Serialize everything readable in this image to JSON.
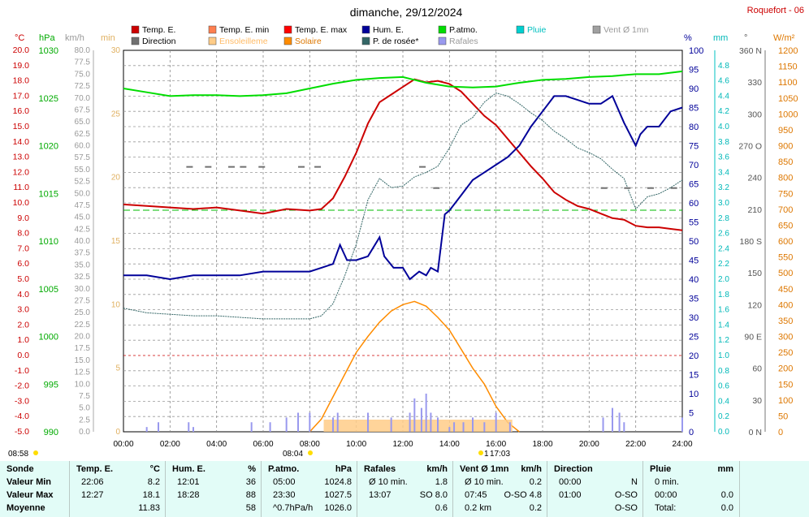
{
  "title": "dimanche, 29/12/2024",
  "station": "Roquefort - 06",
  "axes": {
    "temp_unit": "°C",
    "hpa_unit": "hPa",
    "kmh_unit": "km/h",
    "min_unit": "min",
    "pct_unit": "%",
    "mm_unit": "mm",
    "deg_unit": "°",
    "wm2_unit": "W/m²"
  },
  "legend": [
    {
      "label": "Temp. E.",
      "color": "#cc0000"
    },
    {
      "label": "Temp. E. min",
      "color": "#ff7f50"
    },
    {
      "label": "Temp. E. max",
      "color": "#ff0000"
    },
    {
      "label": "Hum. E.",
      "color": "#000099"
    },
    {
      "label": "P.atmo.",
      "color": "#00dd00"
    },
    {
      "label": "Pluie",
      "color": "#00d0d0"
    },
    {
      "label": "Vent Ø 1mn",
      "color": "#a0a0a0"
    },
    {
      "label": "Direction",
      "color": "#707070"
    },
    {
      "label": "Ensoleilleme",
      "color": "#ffcc88"
    },
    {
      "label": "Solaire",
      "color": "#ff8c00"
    },
    {
      "label": "P. de rosée*",
      "color": "#336666"
    },
    {
      "label": "Rafales",
      "color": "#9999ee"
    }
  ],
  "sun": {
    "rise": "08:58",
    "transit": "08:04",
    "set": "17:03",
    "set_prefix": "1"
  },
  "chart_data": {
    "type": "line",
    "x_unit": "time",
    "x_ticks": [
      "00:00",
      "02:00",
      "04:00",
      "06:00",
      "08:00",
      "10:00",
      "12:00",
      "14:00",
      "16:00",
      "18:00",
      "20:00",
      "22:00",
      "24:00"
    ],
    "y_left_temp": {
      "range": [
        -5,
        20
      ],
      "ticks": [
        "20.0",
        "19.0",
        "18.0",
        "17.0",
        "16.0",
        "15.0",
        "14.0",
        "13.0",
        "12.0",
        "11.0",
        "10.0",
        "9.0",
        "8.0",
        "7.0",
        "6.0",
        "5.0",
        "4.0",
        "3.0",
        "2.0",
        "1.0",
        "0.0",
        "-1.0",
        "-2.0",
        "-3.0",
        "-4.0",
        "-5.0"
      ]
    },
    "y_left_hpa": {
      "range": [
        990,
        1030
      ],
      "ticks": [
        "1030",
        "1025",
        "1020",
        "1015",
        "1010",
        "1005",
        "1000",
        "995",
        "990"
      ]
    },
    "y_left_kmh": {
      "range": [
        0,
        80
      ],
      "ticks": [
        "80.0",
        "77.5",
        "75.0",
        "72.5",
        "70.0",
        "67.5",
        "65.0",
        "62.5",
        "60.0",
        "57.5",
        "55.0",
        "52.5",
        "50.0",
        "47.5",
        "45.0",
        "42.5",
        "40.0",
        "37.5",
        "35.0",
        "32.5",
        "30.0",
        "27.5",
        "25.0",
        "22.5",
        "20.0",
        "17.5",
        "15.0",
        "12.5",
        "10.0",
        "7.5",
        "5.0",
        "2.5",
        "0.0"
      ]
    },
    "y_left_min": {
      "range": [
        0,
        30
      ],
      "ticks": [
        "30",
        "25",
        "20",
        "15",
        "10",
        "5",
        "0"
      ]
    },
    "y_right_pct": {
      "range": [
        0,
        100
      ],
      "ticks": [
        "100",
        "95",
        "90",
        "85",
        "80",
        "75",
        "70",
        "65",
        "60",
        "55",
        "50",
        "45",
        "40",
        "35",
        "30",
        "25",
        "20",
        "15",
        "10",
        "5",
        "0"
      ]
    },
    "y_right_mm": {
      "range": [
        0,
        5
      ],
      "ticks": [
        "4.8",
        "4.6",
        "4.4",
        "4.2",
        "4.0",
        "3.8",
        "3.6",
        "3.4",
        "3.2",
        "3.0",
        "2.8",
        "2.6",
        "2.4",
        "2.2",
        "2.0",
        "1.8",
        "1.6",
        "1.4",
        "1.2",
        "1.0",
        "0.8",
        "0.6",
        "0.4",
        "0.2",
        "0.0"
      ]
    },
    "y_right_dir": {
      "range": [
        0,
        360
      ],
      "ticks": [
        "360 N",
        "330",
        "300",
        "270 O",
        "240",
        "210",
        "180 S",
        "150",
        "120",
        "90 E",
        "60",
        "30",
        "0 N"
      ]
    },
    "y_right_wm2": {
      "range": [
        0,
        1200
      ],
      "ticks": [
        "1200",
        "1150",
        "1100",
        "1050",
        "1000",
        "950",
        "900",
        "850",
        "800",
        "750",
        "700",
        "650",
        "600",
        "550",
        "500",
        "450",
        "400",
        "350",
        "300",
        "250",
        "200",
        "150",
        "100",
        "50",
        "0"
      ]
    },
    "series": [
      {
        "name": "Temp. E.",
        "axis": "temp",
        "color": "#cc0000",
        "x": [
          0,
          1,
          2,
          3,
          4,
          5,
          6,
          7,
          8,
          8.5,
          9,
          9.5,
          10,
          10.5,
          11,
          11.5,
          12,
          12.5,
          13,
          13.5,
          14,
          14.5,
          15,
          15.5,
          16,
          16.5,
          17,
          17.5,
          18,
          18.5,
          19,
          19.5,
          20,
          20.5,
          21,
          21.5,
          22,
          22.5,
          23,
          23.5,
          24
        ],
        "y": [
          9.9,
          9.8,
          9.7,
          9.6,
          9.7,
          9.5,
          9.3,
          9.6,
          9.5,
          9.6,
          10.3,
          11.7,
          13.3,
          15.2,
          16.6,
          17.1,
          17.6,
          18.1,
          17.9,
          18.0,
          17.8,
          17.3,
          16.5,
          15.7,
          15.1,
          14.2,
          13.3,
          12.4,
          11.6,
          10.7,
          10.2,
          9.8,
          9.6,
          9.3,
          9.0,
          8.9,
          8.5,
          8.4,
          8.4,
          8.3,
          8.2
        ]
      },
      {
        "name": "Hum. E.",
        "axis": "pct",
        "color": "#000099",
        "x": [
          0,
          1,
          2,
          3,
          4,
          5,
          6,
          7,
          8,
          8.5,
          9,
          9.3,
          9.6,
          10,
          10.5,
          11,
          11.2,
          11.6,
          12,
          12.3,
          12.7,
          13,
          13.2,
          13.5,
          13.8,
          14,
          14.5,
          15,
          15.5,
          16,
          16.5,
          17,
          17.5,
          18,
          18.5,
          19,
          19.5,
          20,
          20.5,
          21,
          21.5,
          22,
          22.2,
          22.5,
          23,
          23.5,
          24
        ],
        "y": [
          41,
          41,
          40,
          41,
          41,
          41,
          42,
          42,
          42,
          43,
          44,
          49,
          45,
          45,
          46,
          51,
          46,
          43,
          43,
          40,
          42,
          41,
          43,
          42,
          57,
          58,
          62,
          66,
          68,
          70,
          72,
          75,
          80,
          84,
          88,
          88,
          87,
          86,
          86,
          88,
          81,
          75,
          78,
          80,
          80,
          84,
          85
        ]
      },
      {
        "name": "P.atmo.",
        "axis": "hpa",
        "color": "#00dd00",
        "x": [
          0,
          1,
          2,
          3,
          4,
          5,
          6,
          7,
          8,
          9,
          10,
          11,
          12,
          13,
          14,
          15,
          16,
          17,
          18,
          19,
          20,
          21,
          22,
          23,
          24
        ],
        "y": [
          1026.0,
          1025.6,
          1025.2,
          1025.3,
          1025.3,
          1025.2,
          1025.3,
          1025.5,
          1026.0,
          1026.5,
          1026.9,
          1027.1,
          1027.2,
          1026.6,
          1026.2,
          1026.1,
          1026.2,
          1026.6,
          1026.9,
          1027.0,
          1027.2,
          1027.3,
          1027.5,
          1027.5,
          1027.8
        ]
      },
      {
        "name": "P. de rosée*",
        "axis": "temp",
        "color": "#336666",
        "x": [
          0,
          1,
          2,
          3,
          4,
          5,
          6,
          7,
          8,
          8.5,
          9,
          9.5,
          10,
          10.5,
          11,
          11.5,
          12,
          12.5,
          13,
          13.5,
          14,
          14.5,
          15,
          15.5,
          16,
          16.5,
          17,
          17.5,
          18,
          18.5,
          19,
          19.5,
          20,
          20.5,
          21,
          21.5,
          22,
          22.5,
          23,
          23.5,
          24
        ],
        "y": [
          3.1,
          2.8,
          2.7,
          2.6,
          2.6,
          2.5,
          2.4,
          2.4,
          2.4,
          2.6,
          3.4,
          5.2,
          7.3,
          10.2,
          11.6,
          11.0,
          11.1,
          11.7,
          12.0,
          12.4,
          13.6,
          15.1,
          15.6,
          16.6,
          17.2,
          17.0,
          16.5,
          15.9,
          15.4,
          14.7,
          14.2,
          13.6,
          13.3,
          12.9,
          12.2,
          11.6,
          9.6,
          10.4,
          10.6,
          11.0,
          11.5
        ]
      },
      {
        "name": "Solaire",
        "axis": "wm2",
        "color": "#ff8c00",
        "x": [
          8,
          8.5,
          9,
          9.5,
          10,
          10.5,
          11,
          11.5,
          12,
          12.5,
          13,
          13.5,
          14,
          14.5,
          15,
          15.5,
          16,
          16.5,
          17
        ],
        "y": [
          0,
          40,
          110,
          180,
          250,
          300,
          345,
          380,
          400,
          410,
          395,
          360,
          320,
          260,
          200,
          150,
          80,
          30,
          0
        ]
      },
      {
        "name": "Ensoleilleme",
        "axis": "min",
        "color": "#ffcc88",
        "x": [
          8.6,
          16.7
        ],
        "y": [
          1,
          1
        ]
      },
      {
        "name": "Rafales",
        "axis": "kmh",
        "color": "#9999ee",
        "x": [
          1,
          1.5,
          2.8,
          3,
          5.5,
          6.3,
          7,
          7.5,
          8,
          9,
          9.2,
          10.5,
          11.5,
          12.3,
          12.5,
          12.8,
          13,
          13.2,
          13.5,
          14,
          14.2,
          14.6,
          15,
          15.5,
          16,
          16.6,
          20.6,
          21,
          21.3,
          21.5,
          24
        ],
        "y": [
          1,
          2,
          2,
          1,
          2,
          2,
          3,
          4,
          4,
          3,
          4,
          4,
          3,
          4,
          7,
          5,
          8,
          4,
          3,
          1,
          2,
          2,
          3,
          2,
          4,
          2,
          3,
          5,
          4,
          2,
          3
        ]
      },
      {
        "name": "Direction",
        "axis": "dir",
        "color": "#707070",
        "x": [
          2.7,
          3.5,
          4.5,
          5,
          5.8,
          7.5,
          8.2,
          12.7,
          13.3,
          20.5,
          21.5,
          22.5,
          23.5
        ],
        "y": [
          250,
          250,
          250,
          250,
          250,
          250,
          250,
          250,
          230,
          230,
          230,
          230,
          230
        ]
      }
    ]
  },
  "table": {
    "row_labels": [
      "Sonde",
      "Valeur Min",
      "Valeur Max",
      "Moyenne"
    ],
    "cols": [
      {
        "hdr": "Temp. E.",
        "unit": "°C",
        "rows": [
          [
            "22:06",
            "8.2"
          ],
          [
            "12:27",
            "18.1"
          ],
          [
            "",
            "11.83"
          ]
        ]
      },
      {
        "hdr": "Hum. E.",
        "unit": "%",
        "rows": [
          [
            "12:01",
            "36"
          ],
          [
            "18:28",
            "88"
          ],
          [
            "",
            "58"
          ]
        ]
      },
      {
        "hdr": "P.atmo.",
        "unit": "hPa",
        "rows": [
          [
            "05:00",
            "1024.8"
          ],
          [
            "23:30",
            "1027.5"
          ],
          [
            "^0.7hPa/h",
            "1026.0"
          ]
        ]
      },
      {
        "hdr": "Rafales",
        "unit": "km/h",
        "rows": [
          [
            "Ø 10 min.",
            "1.8"
          ],
          [
            "13:07",
            "SO 8.0"
          ],
          [
            "",
            "0.6"
          ]
        ]
      },
      {
        "hdr": "Vent Ø 1mn",
        "unit": "km/h",
        "rows": [
          [
            "Ø 10 min.",
            "0.2"
          ],
          [
            "07:45",
            "O-SO 4.8"
          ],
          [
            "0.2 km",
            "0.2"
          ]
        ]
      },
      {
        "hdr": "Direction",
        "unit": "",
        "rows": [
          [
            "00:00",
            "N"
          ],
          [
            "01:00",
            "O-SO"
          ],
          [
            "",
            "O-SO"
          ]
        ]
      },
      {
        "hdr": "Pluie",
        "unit": "mm",
        "rows": [
          [
            "0 min.",
            ""
          ],
          [
            "00:00",
            "0.0"
          ],
          [
            "Total:",
            "0.0"
          ]
        ]
      }
    ]
  }
}
